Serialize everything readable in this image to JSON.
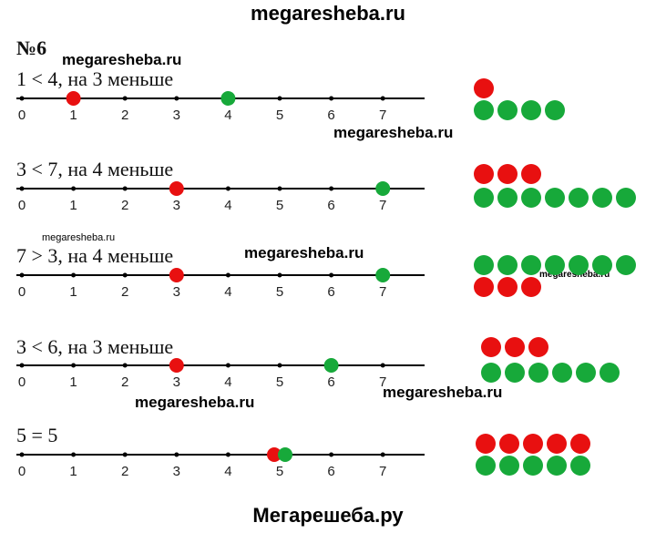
{
  "watermarks": {
    "top": "megaresheba.ru",
    "bottom": "Мегарешеба.ру",
    "inline": "megaresheba.ru"
  },
  "task_number": "№6",
  "ticks": [
    "0",
    "1",
    "2",
    "3",
    "4",
    "5",
    "6",
    "7"
  ],
  "colors": {
    "red": "#e81010",
    "green": "#17a93a",
    "line": "#000000"
  },
  "exercises": [
    {
      "label": "1 < 4, на 3 меньше",
      "red_point": 1,
      "green_point": 4,
      "red_count": 1,
      "green_count": 4,
      "red_first": true
    },
    {
      "label": "3 < 7, на 4 меньше",
      "red_point": 3,
      "green_point": 7,
      "red_count": 3,
      "green_count": 7,
      "red_first": true
    },
    {
      "label": "7 > 3, на 4 меньше",
      "red_point": 3,
      "green_point": 7,
      "red_count": 3,
      "green_count": 7,
      "red_first": false
    },
    {
      "label": "3 < 6, на 3 меньше",
      "red_point": 3,
      "green_point": 6,
      "red_count": 3,
      "green_count": 6,
      "red_first": true
    },
    {
      "label": "5 = 5",
      "red_point": 5,
      "green_point": 5,
      "red_count": 5,
      "green_count": 5,
      "red_first": true
    }
  ]
}
